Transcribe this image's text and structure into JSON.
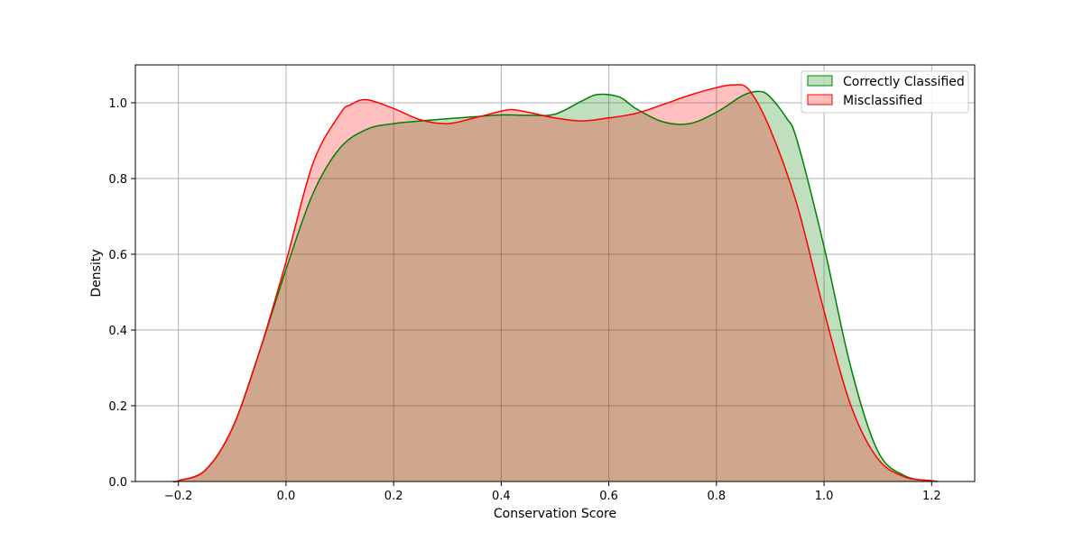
{
  "chart_data": {
    "type": "area",
    "title": "",
    "xlabel": "Conservation Score",
    "ylabel": "Density",
    "xlim": [
      -0.28,
      1.28
    ],
    "ylim": [
      0,
      1.1
    ],
    "xticks": [
      -0.2,
      0.0,
      0.2,
      0.4,
      0.6,
      0.8,
      1.0,
      1.2
    ],
    "xtick_labels": [
      "−0.2",
      "0.0",
      "0.2",
      "0.4",
      "0.6",
      "0.8",
      "1.0",
      "1.2"
    ],
    "yticks": [
      0.0,
      0.2,
      0.4,
      0.6,
      0.8,
      1.0
    ],
    "ytick_labels": [
      "0.0",
      "0.2",
      "0.4",
      "0.6",
      "0.8",
      "1.0"
    ],
    "grid": true,
    "legend_position": "top-right",
    "series": [
      {
        "name": "Correctly Classified",
        "line_color": "#008000",
        "fill_color": "#008000",
        "fill_opacity": 0.25,
        "x": [
          -0.21,
          -0.2,
          -0.15,
          -0.1,
          -0.05,
          0.0,
          0.05,
          0.1,
          0.15,
          0.2,
          0.25,
          0.3,
          0.35,
          0.4,
          0.45,
          0.5,
          0.55,
          0.58,
          0.62,
          0.65,
          0.7,
          0.75,
          0.8,
          0.85,
          0.88,
          0.9,
          0.93,
          0.95,
          1.0,
          1.05,
          1.1,
          1.15,
          1.2,
          1.21
        ],
        "y": [
          0.0,
          0.002,
          0.03,
          0.14,
          0.34,
          0.56,
          0.76,
          0.88,
          0.93,
          0.945,
          0.952,
          0.958,
          0.963,
          0.968,
          0.967,
          0.97,
          1.005,
          1.022,
          1.015,
          0.985,
          0.95,
          0.945,
          0.975,
          1.02,
          1.03,
          1.015,
          0.96,
          0.9,
          0.62,
          0.3,
          0.08,
          0.015,
          0.002,
          0.0
        ]
      },
      {
        "name": "Misclassified",
        "line_color": "#ff0000",
        "fill_color": "#ff0000",
        "fill_opacity": 0.25,
        "x": [
          -0.21,
          -0.2,
          -0.15,
          -0.1,
          -0.05,
          0.0,
          0.05,
          0.1,
          0.12,
          0.15,
          0.2,
          0.25,
          0.3,
          0.35,
          0.4,
          0.42,
          0.45,
          0.5,
          0.55,
          0.6,
          0.65,
          0.7,
          0.75,
          0.8,
          0.83,
          0.86,
          0.9,
          0.95,
          1.0,
          1.05,
          1.1,
          1.15,
          1.2,
          1.21
        ],
        "y": [
          0.0,
          0.002,
          0.03,
          0.14,
          0.34,
          0.58,
          0.84,
          0.97,
          0.995,
          1.008,
          0.985,
          0.955,
          0.945,
          0.96,
          0.978,
          0.982,
          0.975,
          0.96,
          0.952,
          0.96,
          0.972,
          0.995,
          1.02,
          1.04,
          1.047,
          1.035,
          0.93,
          0.73,
          0.45,
          0.2,
          0.06,
          0.012,
          0.002,
          0.0
        ]
      }
    ]
  }
}
